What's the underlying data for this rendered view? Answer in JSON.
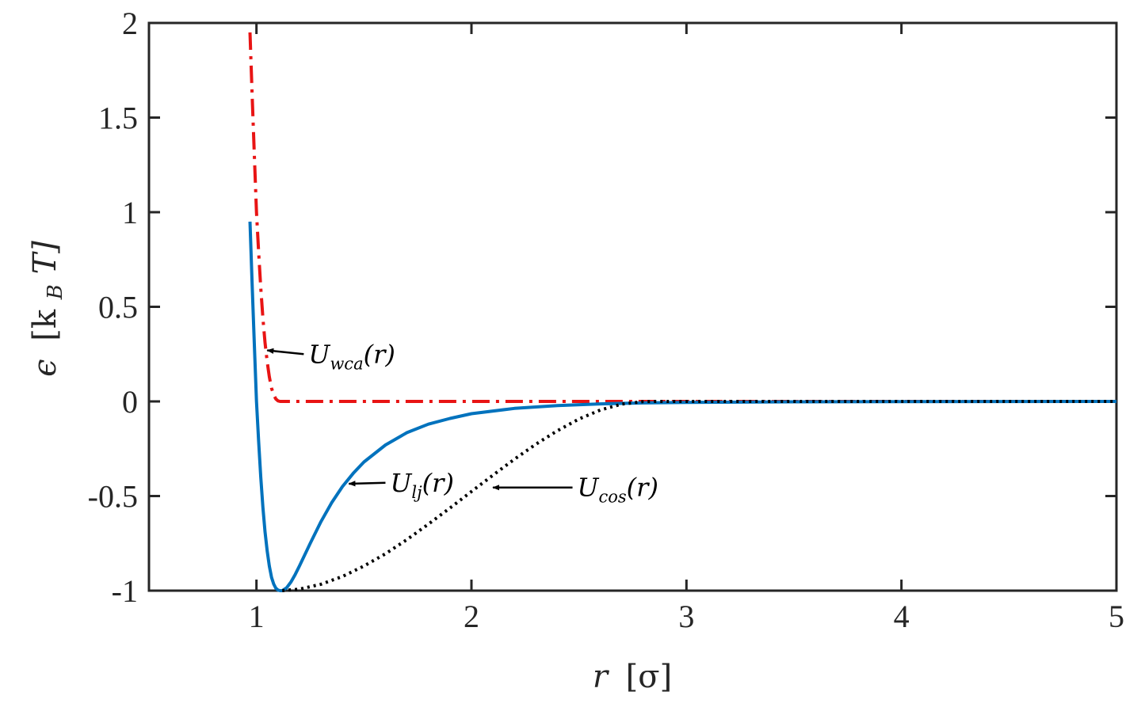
{
  "chart_data": {
    "type": "line",
    "title": "",
    "xlabel": {
      "main": "r",
      "unit": "[σ]"
    },
    "ylabel": {
      "main": "ϵ",
      "unit_pre": "[k",
      "unit_sub": "B",
      "unit_post": "T]"
    },
    "xlim": [
      0.5,
      5
    ],
    "ylim": [
      -1,
      2
    ],
    "xticks": [
      1,
      2,
      3,
      4,
      5
    ],
    "xtick_labels": [
      "1",
      "2",
      "3",
      "4",
      "5"
    ],
    "yticks": [
      -1,
      -0.5,
      0,
      0.5,
      1,
      1.5,
      2
    ],
    "ytick_labels": [
      "-1",
      "-0.5",
      "0",
      "0.5",
      "1",
      "1.5",
      "2"
    ],
    "grid": false,
    "colors": {
      "lj": "#0072BD",
      "wca": "#E81414",
      "cos": "#000000",
      "axes": "#262626"
    },
    "series": [
      {
        "key": "wca",
        "style": "dashdot",
        "color": "#E81414",
        "x": [
          0.97,
          0.98,
          0.99,
          1.0,
          1.01,
          1.02,
          1.03,
          1.04,
          1.05,
          1.06,
          1.07,
          1.08,
          1.09,
          1.1,
          1.11,
          1.12,
          1.5,
          2.0,
          2.5,
          3.0,
          3.5,
          4.0,
          4.5,
          5.0
        ],
        "y": [
          1.95,
          1.62,
          1.3,
          1.0,
          0.79,
          0.6,
          0.44,
          0.31,
          0.21,
          0.13,
          0.07,
          0.035,
          0.013,
          0.003,
          0.0,
          0.0,
          0.0,
          0.0,
          0.0,
          0.0,
          0.0,
          0.0,
          0.0,
          0.0
        ]
      },
      {
        "key": "lj",
        "style": "solid",
        "color": "#0072BD",
        "x": [
          0.97,
          0.98,
          0.99,
          1.0,
          1.01,
          1.02,
          1.03,
          1.04,
          1.05,
          1.06,
          1.07,
          1.08,
          1.09,
          1.1,
          1.11,
          1.12,
          1.14,
          1.16,
          1.18,
          1.2,
          1.25,
          1.3,
          1.35,
          1.4,
          1.45,
          1.5,
          1.6,
          1.7,
          1.8,
          1.9,
          2.0,
          2.2,
          2.4,
          2.6,
          2.8,
          3.0,
          3.5,
          4.0,
          5.0
        ],
        "y": [
          0.95,
          0.62,
          0.3,
          0.0,
          -0.21,
          -0.4,
          -0.56,
          -0.69,
          -0.79,
          -0.87,
          -0.93,
          -0.965,
          -0.987,
          -0.997,
          -1.0,
          -1.0,
          -0.985,
          -0.955,
          -0.915,
          -0.87,
          -0.75,
          -0.635,
          -0.535,
          -0.45,
          -0.38,
          -0.32,
          -0.23,
          -0.165,
          -0.12,
          -0.09,
          -0.065,
          -0.037,
          -0.022,
          -0.013,
          -0.008,
          -0.005,
          -0.002,
          -0.001,
          0.0
        ]
      },
      {
        "key": "cos",
        "style": "dotted",
        "color": "#000000",
        "x": [
          1.12,
          1.2,
          1.3,
          1.4,
          1.5,
          1.6,
          1.7,
          1.8,
          1.9,
          2.0,
          2.1,
          2.2,
          2.3,
          2.4,
          2.5,
          2.6,
          2.7,
          2.8,
          2.87,
          3.0,
          4.0,
          5.0
        ],
        "y": [
          -1.0,
          -0.992,
          -0.966,
          -0.925,
          -0.87,
          -0.805,
          -0.73,
          -0.648,
          -0.563,
          -0.476,
          -0.39,
          -0.305,
          -0.226,
          -0.155,
          -0.093,
          -0.045,
          -0.014,
          -0.001,
          0.0,
          0.0,
          0.0,
          0.0
        ]
      }
    ],
    "annotations": [
      {
        "key": "wca",
        "text_main": "U",
        "text_sub": "wca",
        "text_post": "(r)",
        "tip_x": 1.05,
        "tip_y": 0.27,
        "tail_x": 1.22,
        "tail_y": 0.25
      },
      {
        "key": "lj",
        "text_main": "U",
        "text_sub": "lj",
        "text_post": "(r)",
        "tip_x": 1.43,
        "tip_y": -0.435,
        "tail_x": 1.6,
        "tail_y": -0.43
      },
      {
        "key": "cos",
        "text_main": "U",
        "text_sub": "cos",
        "text_post": "(r)",
        "tip_x": 2.1,
        "tip_y": -0.455,
        "tail_x": 2.47,
        "tail_y": -0.455
      }
    ]
  }
}
